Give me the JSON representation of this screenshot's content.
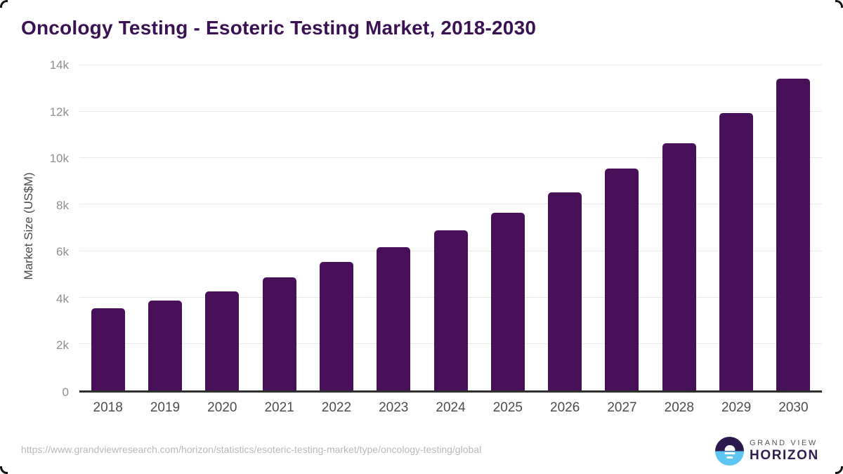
{
  "page": {
    "title": "Oncology Testing - Esoteric Testing Market, 2018-2030",
    "source_url": "https://www.grandviewresearch.com/horizon/statistics/esoteric-testing-market/type/oncology-testing/global"
  },
  "logo": {
    "line1": "GRAND VIEW",
    "line2": "HORIZON",
    "mark": "sun-over-horizon-icon"
  },
  "colors": {
    "title": "#3a1253",
    "bar": "#481058",
    "axis_line": "#2f2f2f",
    "gridline": "#e8e8e8",
    "x_label": "#4d4d4d",
    "y_tick": "#8e8e8e",
    "url_text": "#b9b9b9",
    "logo_dark_purple": "#2c1a4d",
    "logo_light_blue": "#5ec6f2"
  },
  "chart_data": {
    "type": "bar",
    "title": "Oncology Testing - Esoteric Testing Market, 2018-2030",
    "categories": [
      "2018",
      "2019",
      "2020",
      "2021",
      "2022",
      "2023",
      "2024",
      "2025",
      "2026",
      "2027",
      "2028",
      "2029",
      "2030"
    ],
    "values": [
      3550,
      3870,
      4250,
      4880,
      5520,
      6170,
      6890,
      7650,
      8520,
      9550,
      10650,
      11950,
      13430
    ],
    "xlabel": "",
    "ylabel": "Market Size (US$M)",
    "ylim": [
      0,
      14000
    ],
    "yticks": [
      {
        "value": 0,
        "label": "0"
      },
      {
        "value": 2000,
        "label": "2k"
      },
      {
        "value": 4000,
        "label": "4k"
      },
      {
        "value": 6000,
        "label": "6k"
      },
      {
        "value": 8000,
        "label": "8k"
      },
      {
        "value": 10000,
        "label": "10k"
      },
      {
        "value": 12000,
        "label": "12k"
      },
      {
        "value": 14000,
        "label": "14k"
      }
    ],
    "grid": "horizontal",
    "legend": "none",
    "bar_color": "#481058"
  }
}
